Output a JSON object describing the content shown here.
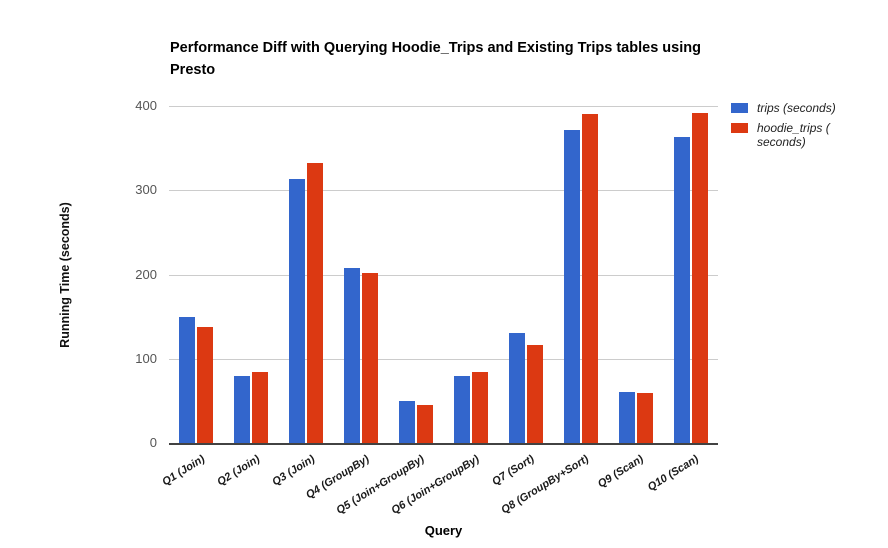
{
  "chart_data": {
    "type": "bar",
    "title": "Performance Diff with Querying Hoodie_Trips and Existing Trips tables using Presto",
    "xlabel": "Query",
    "ylabel": "Running Time (seconds)",
    "categories": [
      "Q1 (Join)",
      "Q2 (Join)",
      "Q3 (Join)",
      "Q4 (GroupBy)",
      "Q5 (Join+GroupBy)",
      "Q6 (Join+GroupBy)",
      "Q7 (Sort)",
      "Q8 (GroupBy+Sort)",
      "Q9 (Scan)",
      "Q10 (Scan)"
    ],
    "series": [
      {
        "name": "trips (seconds)",
        "legend_lines": [
          "trips (seconds)"
        ],
        "color": "#3366CC",
        "values": [
          150,
          80,
          313,
          208,
          50,
          80,
          131,
          371,
          61,
          363
        ]
      },
      {
        "name": "hoodie_trips (seconds)",
        "legend_lines": [
          "hoodie_trips (",
          "seconds)"
        ],
        "color": "#DC3912",
        "values": [
          138,
          84,
          332,
          202,
          45,
          84,
          116,
          390,
          59,
          392
        ]
      }
    ],
    "ylim": [
      0,
      400
    ],
    "yticks": [
      0,
      100,
      200,
      300,
      400
    ],
    "grid": true,
    "legend_position": "right-top",
    "colors": {
      "tick_label": "#555555",
      "gridline": "#cccccc",
      "baseline": "#424242",
      "title_text": "#000000"
    }
  }
}
